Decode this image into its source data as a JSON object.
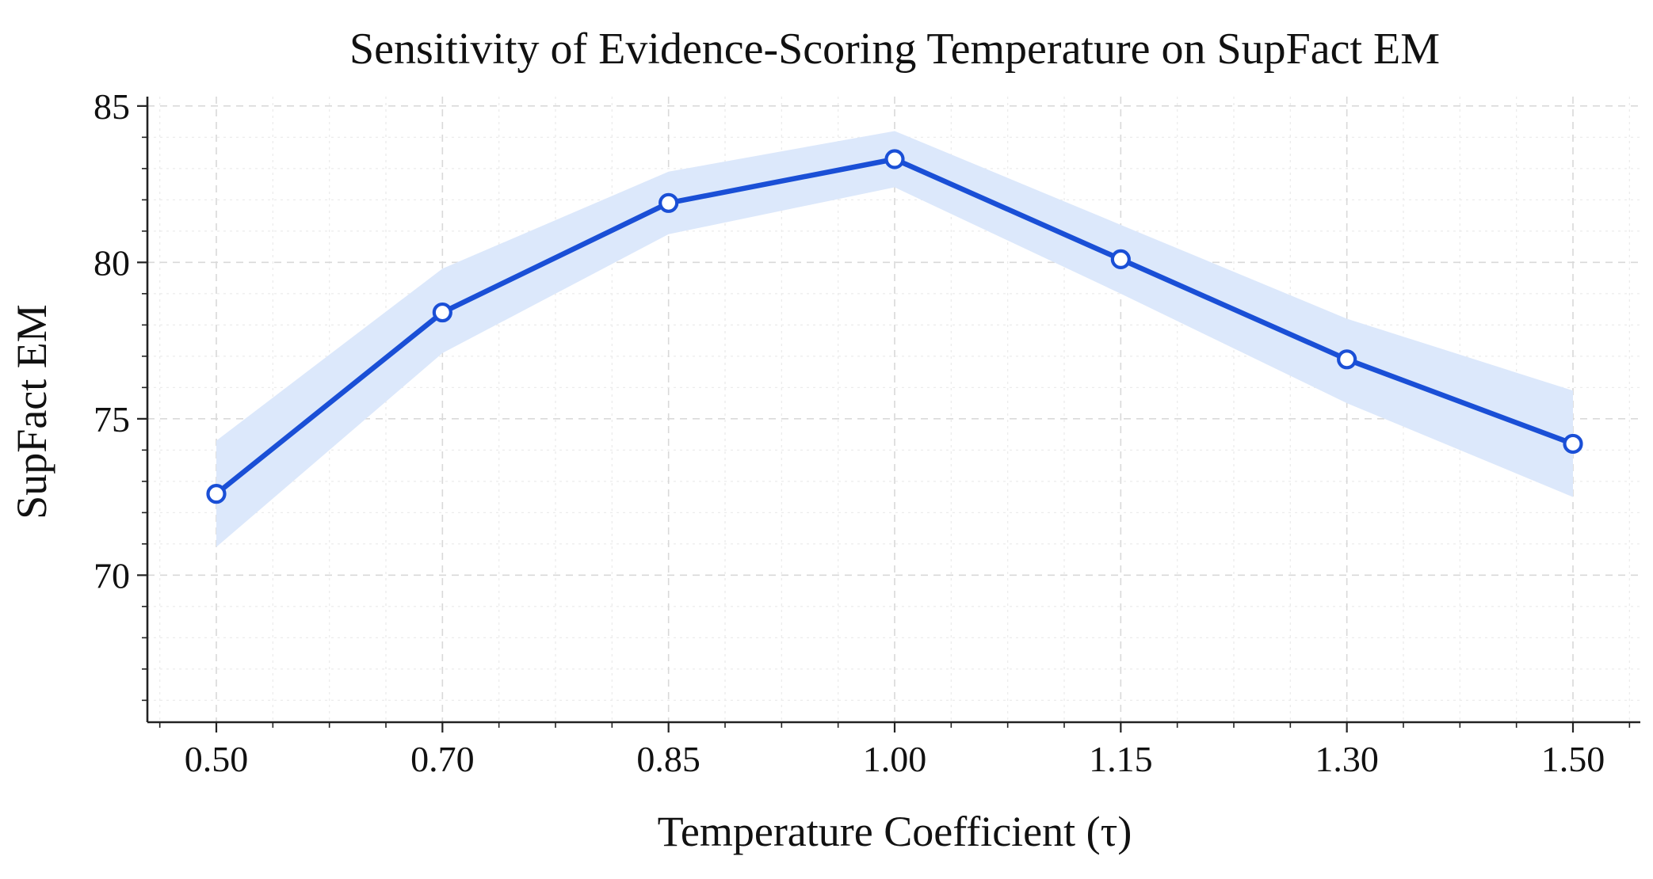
{
  "chart_data": {
    "type": "line",
    "title": "Sensitivity of Evidence-Scoring Temperature on SupFact EM",
    "xlabel": "Temperature Coefficient (τ)",
    "ylabel": "SupFact EM",
    "categories": [
      "0.50",
      "0.70",
      "0.85",
      "1.00",
      "1.15",
      "1.30",
      "1.50"
    ],
    "series": [
      {
        "values": [
          72.6,
          78.4,
          81.9,
          83.3,
          80.1,
          76.9,
          74.2
        ],
        "band_lower": [
          70.9,
          77.1,
          80.9,
          82.4,
          79.0,
          75.5,
          72.5
        ],
        "band_upper": [
          74.3,
          79.8,
          82.9,
          84.2,
          81.2,
          78.2,
          75.9
        ],
        "color": "#1a4fd6",
        "band_color": "#dce8fb"
      }
    ],
    "ylim": [
      65.3,
      85.3
    ],
    "yticks": [
      70,
      75,
      80,
      85
    ],
    "y_minor_step": 1,
    "x_minor_per_interval": 3,
    "grid": true,
    "legend": "none"
  }
}
